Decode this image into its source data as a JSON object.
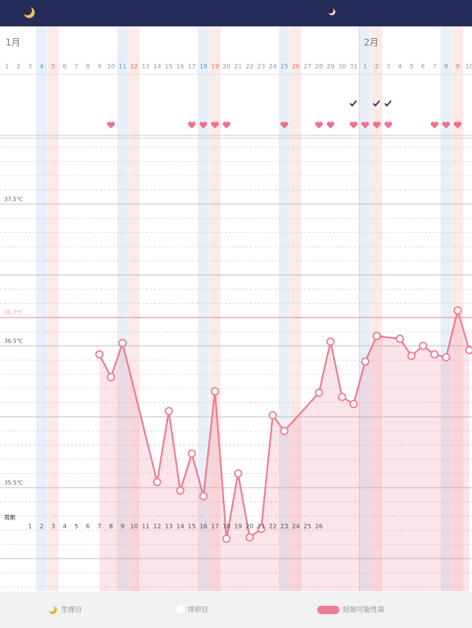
{
  "chart_data": {
    "type": "line",
    "months": [
      {
        "label": "1月",
        "x": 1
      },
      {
        "label": "2月",
        "x": 32
      }
    ],
    "days": [
      {
        "label": "1",
        "color": "#999999"
      },
      {
        "label": "2",
        "color": "#999999"
      },
      {
        "label": "3",
        "color": "#999999"
      },
      {
        "label": "4",
        "color": "#5b9bd5"
      },
      {
        "label": "5",
        "color": "#e8735a"
      },
      {
        "label": "6",
        "color": "#999999"
      },
      {
        "label": "7",
        "color": "#999999"
      },
      {
        "label": "8",
        "color": "#999999"
      },
      {
        "label": "9",
        "color": "#999999"
      },
      {
        "label": "10",
        "color": "#999999"
      },
      {
        "label": "11",
        "color": "#5b9bd5"
      },
      {
        "label": "12",
        "color": "#e8735a"
      },
      {
        "label": "13",
        "color": "#999999"
      },
      {
        "label": "14",
        "color": "#999999"
      },
      {
        "label": "15",
        "color": "#999999"
      },
      {
        "label": "16",
        "color": "#999999"
      },
      {
        "label": "17",
        "color": "#999999"
      },
      {
        "label": "18",
        "color": "#5b9bd5"
      },
      {
        "label": "19",
        "color": "#e8735a"
      },
      {
        "label": "20",
        "color": "#999999"
      },
      {
        "label": "21",
        "color": "#999999"
      },
      {
        "label": "22",
        "color": "#999999"
      },
      {
        "label": "23",
        "color": "#999999"
      },
      {
        "label": "24",
        "color": "#999999"
      },
      {
        "label": "25",
        "color": "#5b9bd5"
      },
      {
        "label": "26",
        "color": "#e8735a"
      },
      {
        "label": "27",
        "color": "#999999"
      },
      {
        "label": "28",
        "color": "#999999"
      },
      {
        "label": "29",
        "color": "#999999"
      },
      {
        "label": "30",
        "color": "#999999"
      },
      {
        "label": "31",
        "color": "#999999"
      },
      {
        "label": "1",
        "color": "#5b9bd5"
      },
      {
        "label": "2",
        "color": "#e8735a"
      },
      {
        "label": "3",
        "color": "#999999"
      },
      {
        "label": "4",
        "color": "#999999"
      },
      {
        "label": "5",
        "color": "#999999"
      },
      {
        "label": "6",
        "color": "#999999"
      },
      {
        "label": "7",
        "color": "#999999"
      },
      {
        "label": "8",
        "color": "#5b9bd5"
      },
      {
        "label": "9",
        "color": "#e8735a"
      },
      {
        "label": "10",
        "color": "#999999"
      }
    ],
    "check_days": [
      31,
      33,
      34
    ],
    "heart_days": [
      10,
      17,
      18,
      19,
      20,
      25,
      28,
      29,
      31,
      32,
      33,
      34,
      38,
      39,
      40
    ],
    "ylim": [
      34.77,
      37.95
    ],
    "yticks": [
      {
        "value": 37.5,
        "label": "37.5℃"
      },
      {
        "value": 36.5,
        "label": "36.5℃"
      },
      {
        "value": 35.5,
        "label": "35.5℃"
      }
    ],
    "cover_line": {
      "value": 36.7,
      "label": "36.7℃",
      "color": "#f0a0b4"
    },
    "major_grid": [
      35.0,
      36.0,
      37.0
    ],
    "minor_grid": [
      34.8,
      34.9,
      35.1,
      35.2,
      35.3,
      35.4,
      35.6,
      35.7,
      35.8,
      35.9,
      36.1,
      36.2,
      36.3,
      36.4,
      36.6,
      36.8,
      36.9,
      37.1,
      37.2,
      37.3,
      37.4,
      37.6,
      37.7,
      37.8,
      37.9
    ],
    "series": [
      {
        "color": "#ee7d96",
        "x": [
          9,
          10,
          11,
          14,
          15,
          16,
          17,
          18,
          19,
          20,
          21,
          22,
          23,
          24,
          25,
          28,
          29,
          30,
          31,
          32,
          33,
          35,
          36,
          37,
          38,
          39,
          40,
          41
        ],
        "values": [
          36.44,
          36.28,
          36.52,
          35.54,
          36.04,
          35.48,
          35.74,
          35.44,
          36.18,
          35.14,
          35.6,
          35.15,
          35.21,
          36.01,
          35.9,
          36.17,
          36.53,
          36.14,
          36.09,
          36.39,
          36.57,
          36.55,
          36.43,
          36.5,
          36.44,
          36.42,
          36.75,
          36.47
        ]
      }
    ],
    "cycle_label": "周期",
    "cycle_days": [
      null,
      null,
      "1",
      "2",
      "3",
      "4",
      "5",
      "6",
      "7",
      "8",
      "9",
      "10",
      "11",
      "12",
      "13",
      "14",
      "15",
      "16",
      "17",
      "18",
      "19",
      "20",
      "21",
      "22",
      "23",
      "24",
      "25",
      "26",
      null,
      null,
      null,
      null,
      null,
      null,
      null,
      null,
      null,
      null,
      null,
      null,
      null
    ],
    "legend": [
      "生理日",
      "排卵日",
      "妊娠可能性高"
    ]
  }
}
